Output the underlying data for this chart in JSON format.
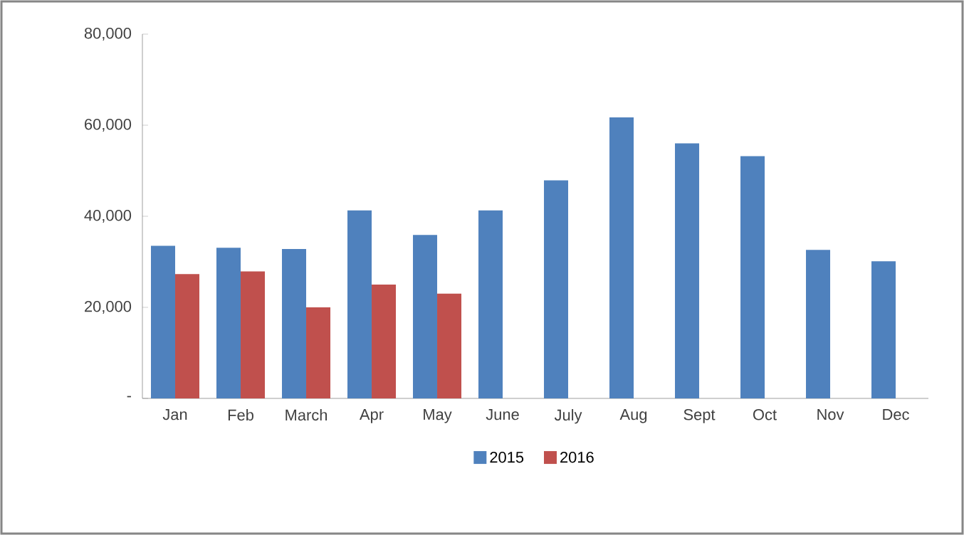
{
  "chart_data": {
    "type": "bar",
    "categories": [
      "Jan",
      "Feb",
      "March",
      "Apr",
      "May",
      "June",
      "July",
      "Aug",
      "Sept",
      "Oct",
      "Nov",
      "Dec"
    ],
    "series": [
      {
        "name": "2015",
        "color": "#4f81bd",
        "values": [
          33500,
          33100,
          32800,
          41300,
          35900,
          41300,
          47900,
          61700,
          56000,
          53200,
          32600,
          30100
        ]
      },
      {
        "name": "2016",
        "color": "#c0504d",
        "values": [
          27300,
          27900,
          20000,
          25000,
          23000,
          null,
          null,
          null,
          null,
          null,
          null,
          null
        ]
      }
    ],
    "ylim": [
      0,
      80000
    ],
    "yticks": [
      {
        "value": 0,
        "label": "-"
      },
      {
        "value": 20000,
        "label": "20,000"
      },
      {
        "value": 40000,
        "label": "40,000"
      },
      {
        "value": 60000,
        "label": "60,000"
      },
      {
        "value": 80000,
        "label": "80,000"
      }
    ],
    "grid": false,
    "legend": "bottom"
  }
}
